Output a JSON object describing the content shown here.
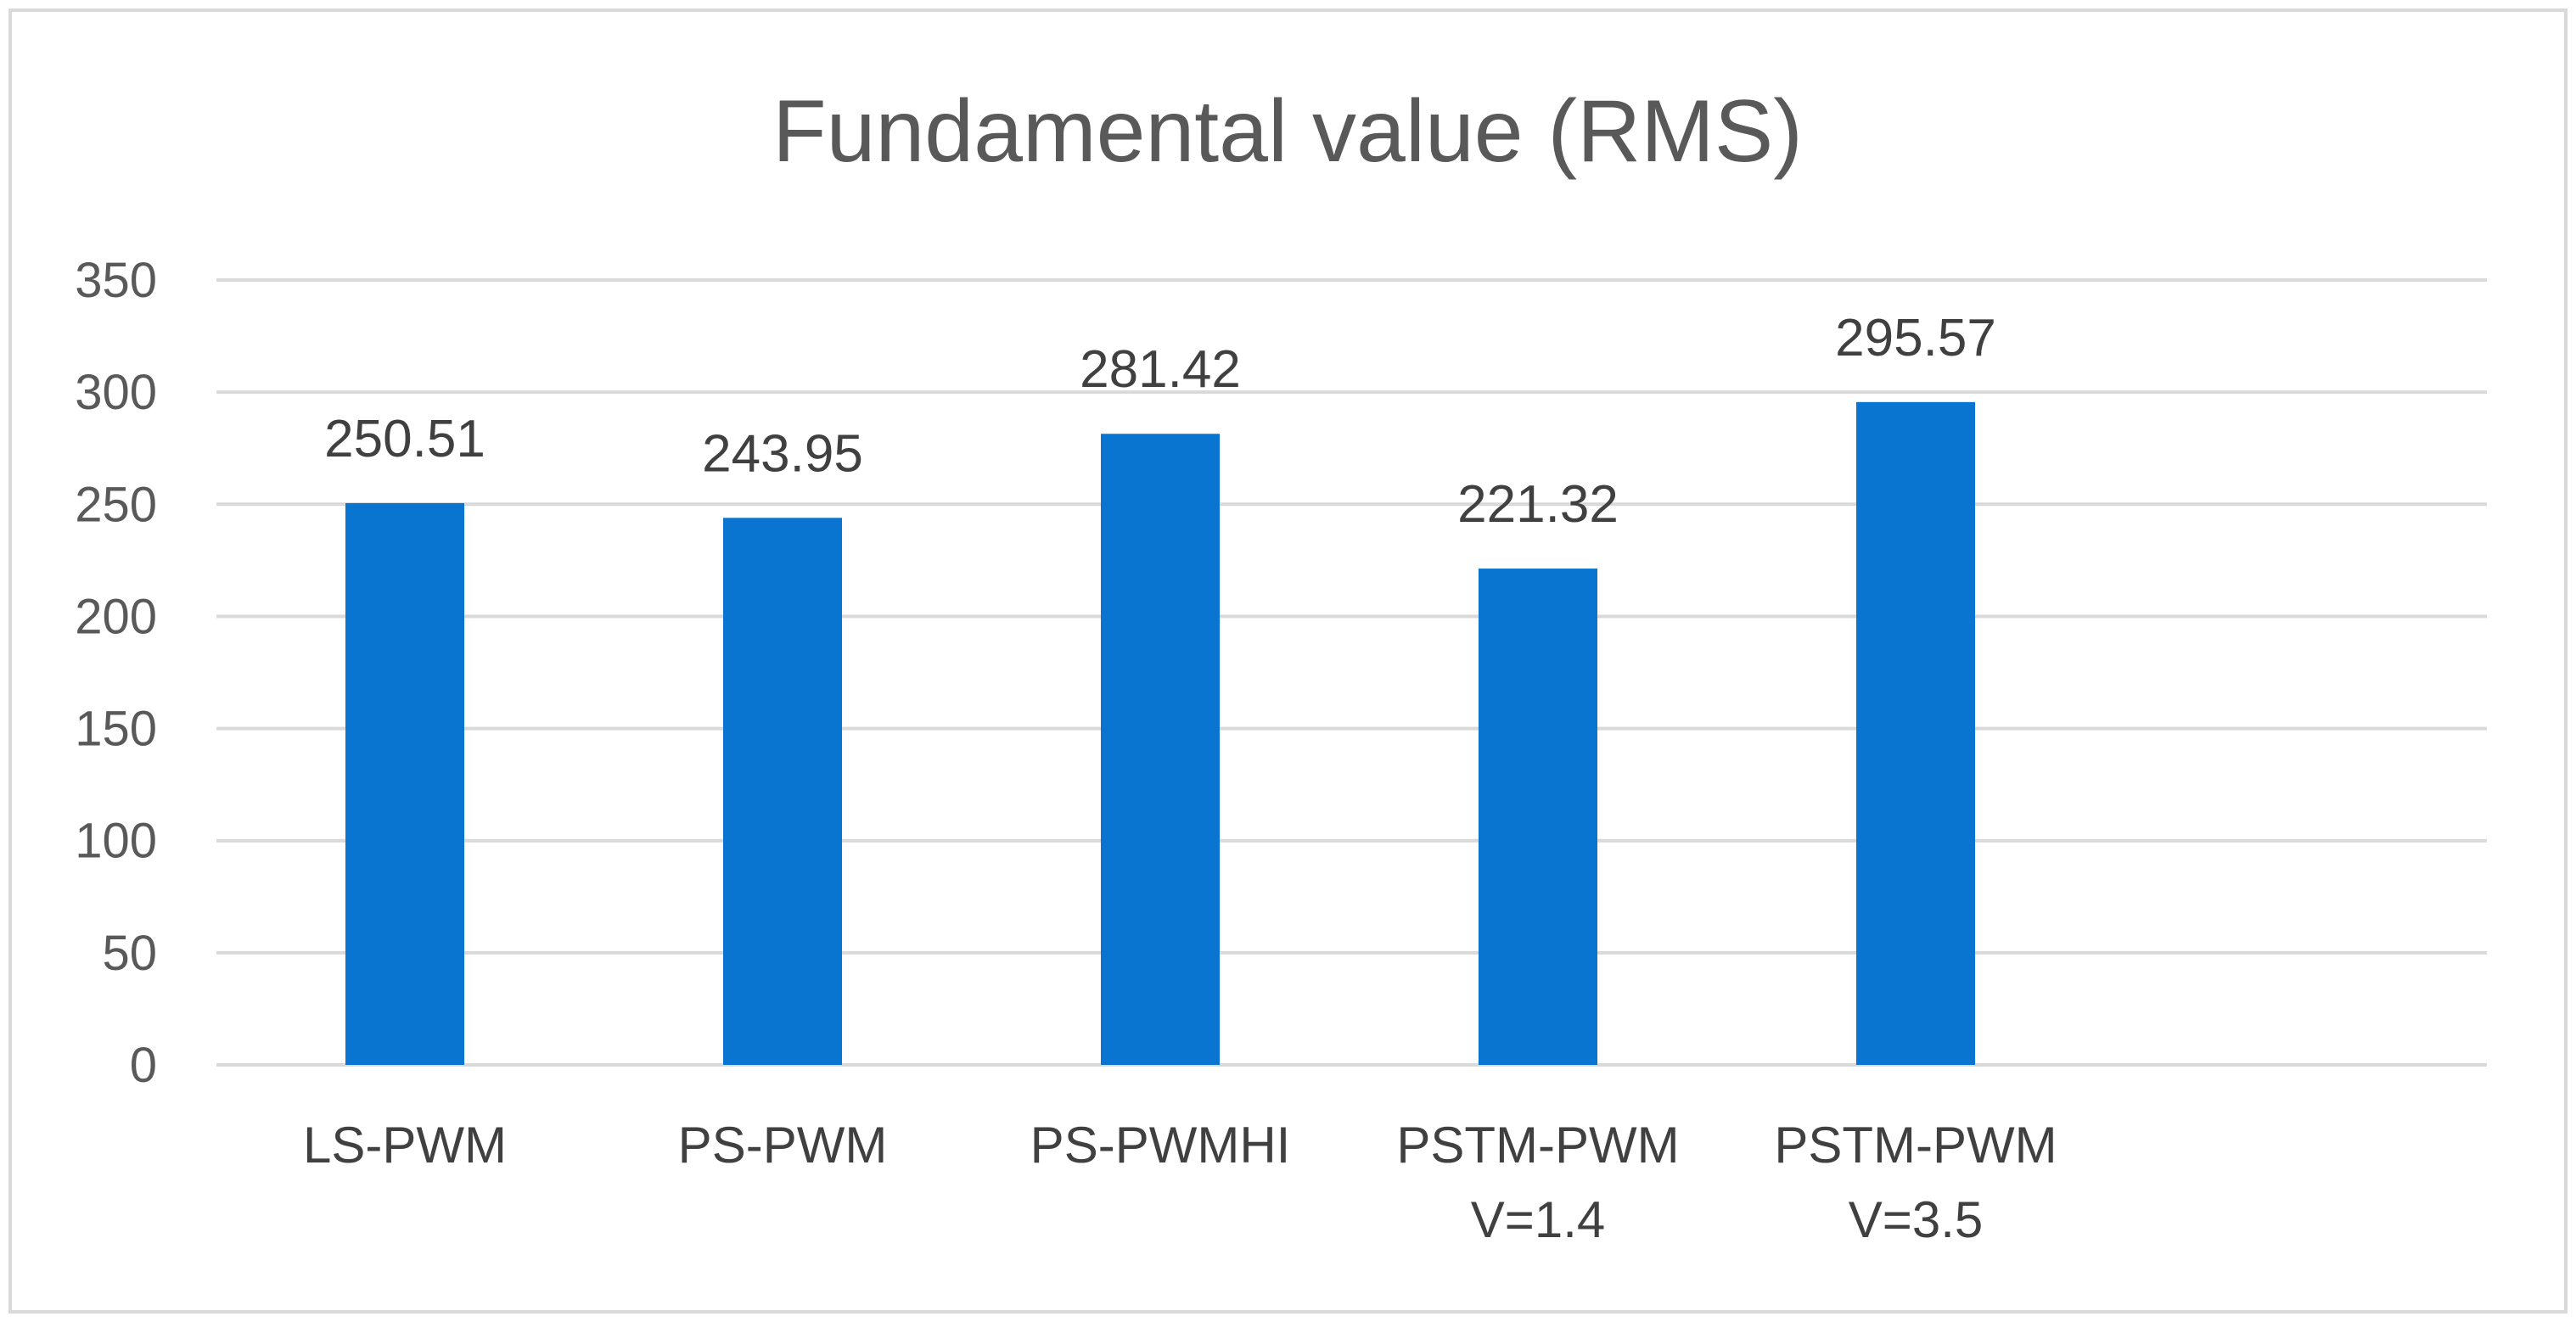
{
  "chart_data": {
    "type": "bar",
    "title": "Fundamental value (RMS)",
    "xlabel": "",
    "ylabel": "",
    "categories": [
      [
        "LS-PWM"
      ],
      [
        "PS-PWM"
      ],
      [
        "PS-PWMHI"
      ],
      [
        "PSTM-PWM",
        "V=1.4"
      ],
      [
        "PSTM-PWM",
        "V=3.5"
      ]
    ],
    "values": [
      250.51,
      243.95,
      281.42,
      221.32,
      295.57
    ],
    "data_labels": [
      "250.51",
      "243.95",
      "281.42",
      "221.32",
      "295.57"
    ],
    "ylim": [
      0,
      350
    ],
    "yticks": [
      0,
      50,
      100,
      150,
      200,
      250,
      300,
      350
    ],
    "grid": true,
    "legend": "none",
    "colors": {
      "bar": "#0a75d1",
      "grid": "#d9d9d9",
      "text": "#595959"
    }
  }
}
